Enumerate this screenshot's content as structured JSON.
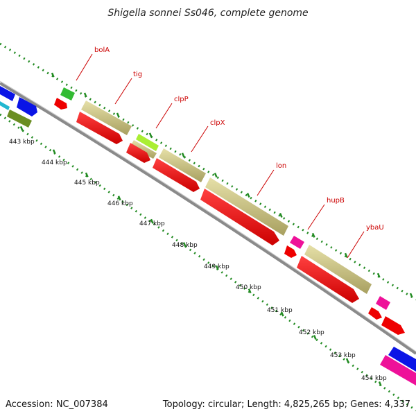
{
  "title": "Shigella sonnei Ss046, complete genome",
  "footer": {
    "accession": "Accession: NC_007384",
    "summary": "Topology: circular; Length: 4,825,265 bp; Genes: 4,337"
  },
  "colors": {
    "backbone": "#888888",
    "forward_cds": "#c8c07e",
    "reverse_cds": "#ee0000",
    "label": "#cc0000",
    "tick": "#228b22",
    "small_gene_green": "#33bb33",
    "small_gene_lime": "#aaee33",
    "small_gene_pink": "#ee1199",
    "neighbor_blue": "#0a14e6",
    "neighbor_olive": "#6b8e23",
    "neighbor_cyan": "#22b8d0"
  },
  "scale_ticks": [
    "443 kbp",
    "444 kbp",
    "445 kbp",
    "446 kbp",
    "447 kbp",
    "448 kbp",
    "449 kbp",
    "450 kbp",
    "451 kbp",
    "452 kbp",
    "453 kbp",
    "454 kbp"
  ],
  "genes": [
    {
      "name": "bolA",
      "start_kbp": 444.2,
      "end_kbp": 444.5
    },
    {
      "name": "tig",
      "start_kbp": 444.8,
      "end_kbp": 446.1
    },
    {
      "name": "clpP",
      "start_kbp": 446.3,
      "end_kbp": 446.9
    },
    {
      "name": "clpX",
      "start_kbp": 447.1,
      "end_kbp": 448.4
    },
    {
      "name": "lon",
      "start_kbp": 448.6,
      "end_kbp": 451.0
    },
    {
      "name": "hupB",
      "start_kbp": 451.3,
      "end_kbp": 451.6
    },
    {
      "name": "ybaU",
      "start_kbp": 451.9,
      "end_kbp": 453.8
    }
  ]
}
